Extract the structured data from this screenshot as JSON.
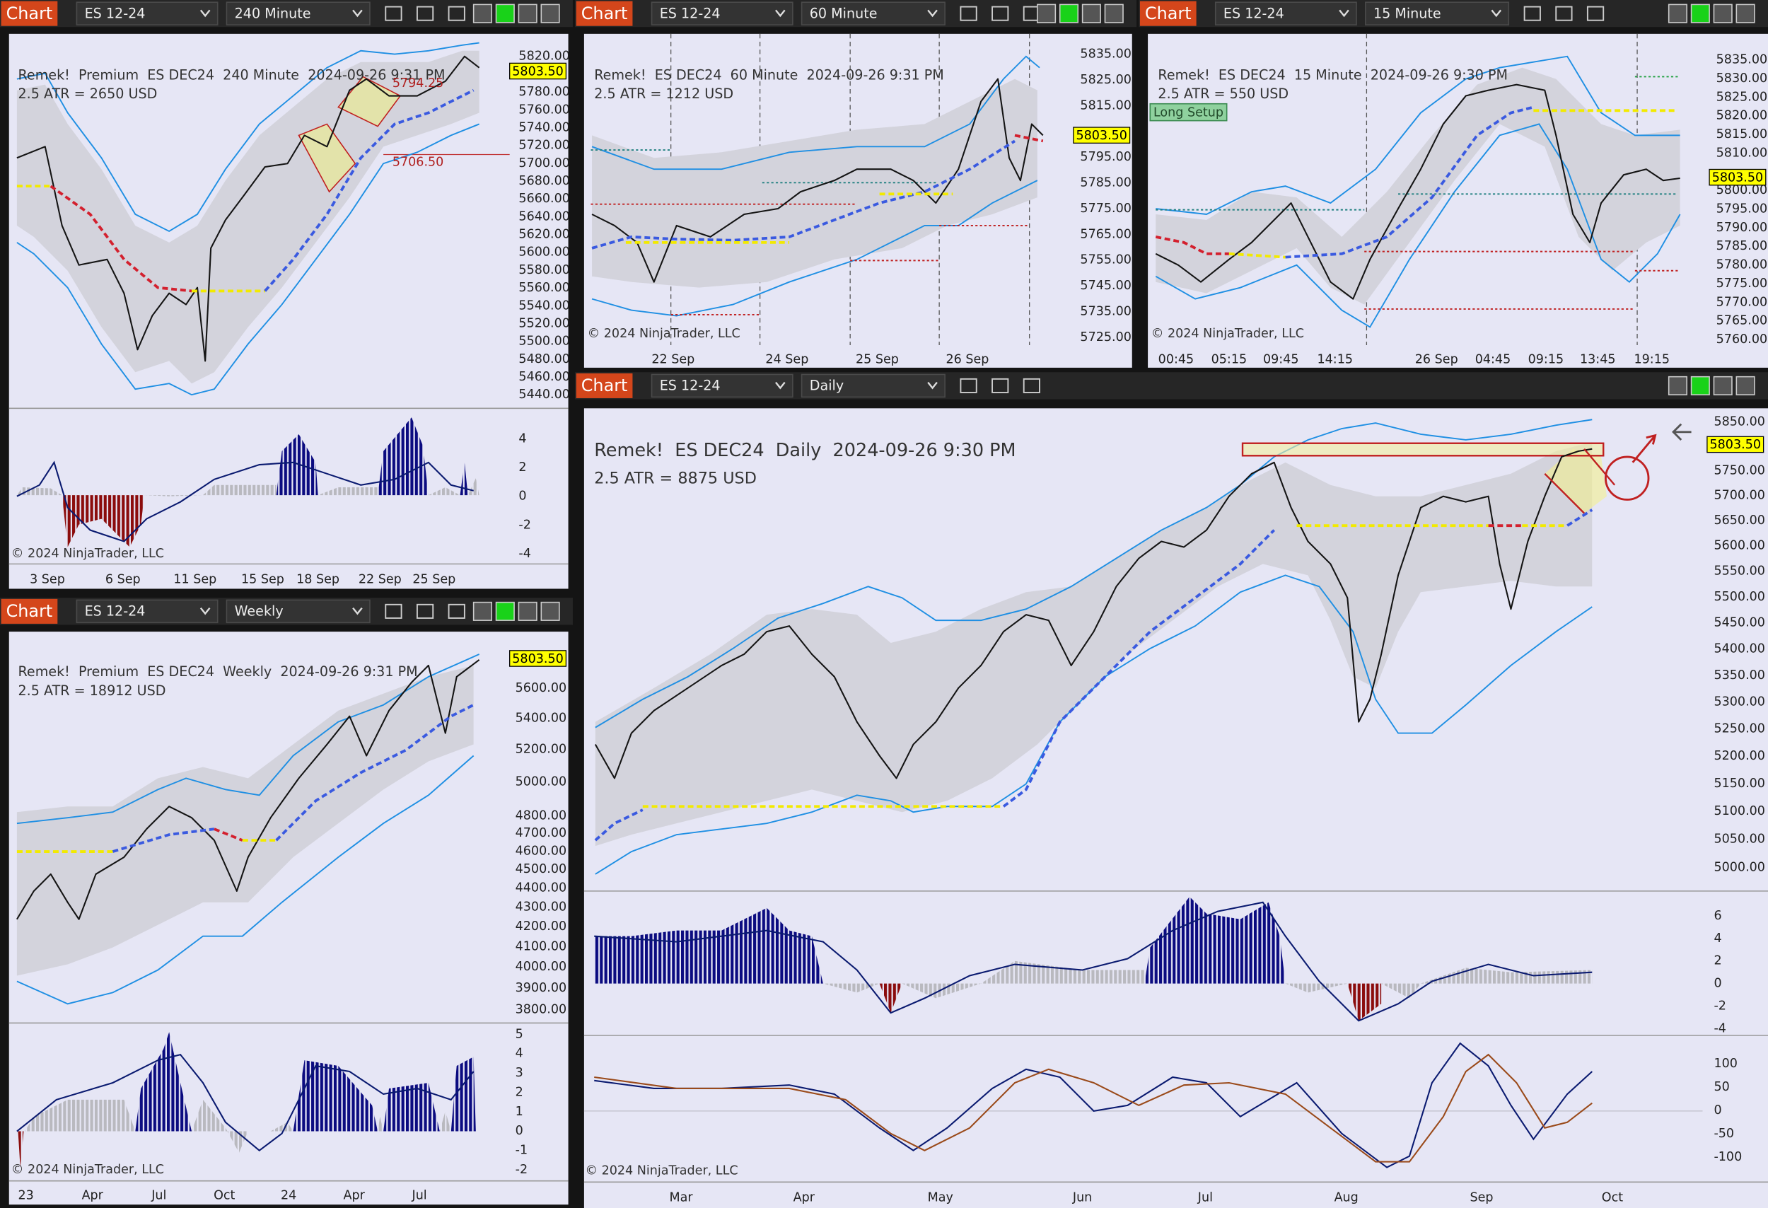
{
  "windows": [
    {
      "label": "Chart",
      "instrument": "ES 12-24",
      "interval": "240 Minute",
      "header": "Remek!  Premium  ES DEC24  240 Minute  2024-09-26 9:31 PM",
      "atr": "2.5 ATR = 2650 USD",
      "price_marker": "5803.50",
      "price_axis": [
        "5820.00",
        "5780.00",
        "5760.00",
        "5740.00",
        "5720.00",
        "5700.00",
        "5680.00",
        "5660.00",
        "5640.00",
        "5620.00",
        "5600.00",
        "5580.00",
        "5560.00",
        "5540.00",
        "5520.00",
        "5500.00",
        "5480.00",
        "5460.00",
        "5440.00"
      ],
      "indicator_axis": [
        "4",
        "2",
        "0",
        "-2",
        "-4"
      ],
      "time_axis": [
        "3 Sep",
        "6 Sep",
        "11 Sep",
        "15 Sep",
        "18 Sep",
        "22 Sep",
        "25 Sep"
      ],
      "annotations": [
        "5794.25",
        "5706.50"
      ],
      "copyright": "© 2024 NinjaTrader, LLC"
    },
    {
      "label": "Chart",
      "instrument": "ES 12-24",
      "interval": "60 Minute",
      "header": "Remek!  ES DEC24  60 Minute  2024-09-26 9:31 PM",
      "atr": "2.5 ATR = 1212 USD",
      "price_marker": "5803.50",
      "price_axis": [
        "5835.00",
        "5825.00",
        "5815.00",
        "5795.00",
        "5785.00",
        "5775.00",
        "5765.00",
        "5755.00",
        "5745.00",
        "5735.00",
        "5725.00"
      ],
      "time_axis": [
        "22 Sep",
        "24 Sep",
        "25 Sep",
        "26 Sep"
      ],
      "copyright": "© 2024 NinjaTrader, LLC"
    },
    {
      "label": "Chart",
      "instrument": "ES 12-24",
      "interval": "15 Minute",
      "header": "Remek!  ES DEC24  15 Minute  2024-09-26 9:30 PM",
      "atr": "2.5 ATR = 550 USD",
      "setup": "Long Setup",
      "price_marker": "5803.50",
      "price_axis": [
        "5835.00",
        "5830.00",
        "5825.00",
        "5820.00",
        "5815.00",
        "5810.00",
        "5800.00",
        "5795.00",
        "5790.00",
        "5785.00",
        "5780.00",
        "5775.00",
        "5770.00",
        "5765.00",
        "5760.00"
      ],
      "time_axis": [
        "00:45",
        "05:15",
        "09:45",
        "14:15",
        "26 Sep",
        "04:45",
        "09:15",
        "13:45",
        "19:15"
      ],
      "copyright": "© 2024 NinjaTrader, LLC"
    },
    {
      "label": "Chart",
      "instrument": "ES 12-24",
      "interval": "Weekly",
      "header": "Remek!  Premium  ES DEC24  Weekly  2024-09-26 9:31 PM",
      "atr": "2.5 ATR = 18912 USD",
      "price_marker": "5803.50",
      "price_axis": [
        "5600.00",
        "5400.00",
        "5200.00",
        "5000.00",
        "4800.00",
        "4700.00",
        "4600.00",
        "4500.00",
        "4400.00",
        "4300.00",
        "4200.00",
        "4100.00",
        "4000.00",
        "3900.00",
        "3800.00"
      ],
      "indicator_axis": [
        "5",
        "4",
        "3",
        "2",
        "1",
        "0",
        "-1",
        "-2"
      ],
      "time_axis": [
        "23",
        "Apr",
        "Jul",
        "Oct",
        "24",
        "Apr",
        "Jul"
      ],
      "copyright": "© 2024 NinjaTrader, LLC"
    },
    {
      "label": "Chart",
      "instrument": "ES 12-24",
      "interval": "Daily",
      "header": "Remek!  ES DEC24  Daily  2024-09-26 9:30 PM",
      "atr": "2.5 ATR = 8875 USD",
      "price_marker": "5803.50",
      "price_axis": [
        "5850.00",
        "5750.00",
        "5700.00",
        "5650.00",
        "5600.00",
        "5550.00",
        "5500.00",
        "5450.00",
        "5400.00",
        "5350.00",
        "5300.00",
        "5250.00",
        "5200.00",
        "5150.00",
        "5100.00",
        "5050.00",
        "5000.00"
      ],
      "indicator_axis": [
        "6",
        "4",
        "2",
        "0",
        "-2",
        "-4"
      ],
      "indicator2_axis": [
        "100",
        "50",
        "0",
        "-50",
        "-100"
      ],
      "time_axis": [
        "Mar",
        "Apr",
        "May",
        "Jun",
        "Jul",
        "Aug",
        "Sep",
        "Oct"
      ],
      "copyright": "© 2024 NinjaTrader, LLC"
    }
  ]
}
